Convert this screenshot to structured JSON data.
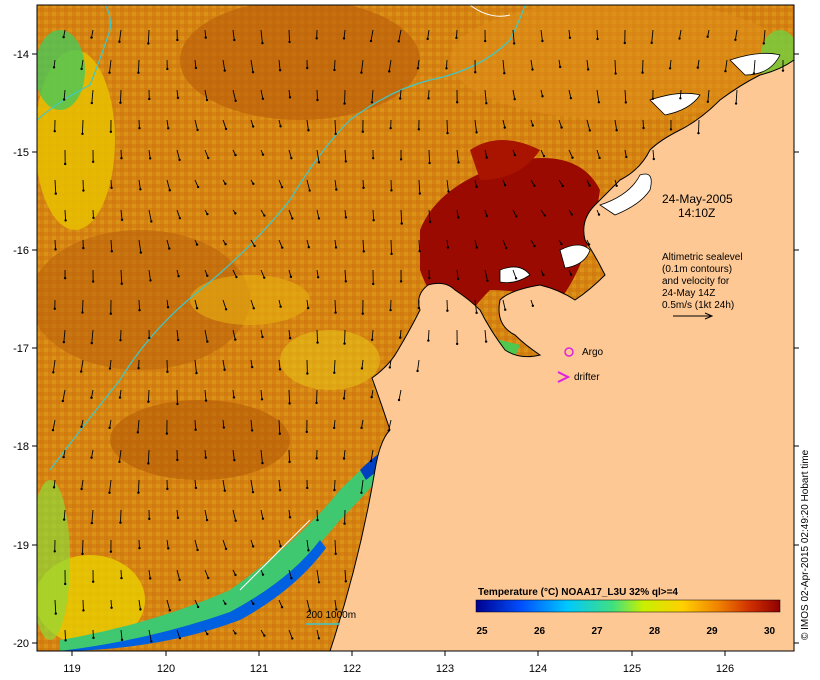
{
  "map": {
    "lon_ticks": [
      "119",
      "120",
      "121",
      "122",
      "123",
      "124",
      "125",
      "126"
    ],
    "lat_ticks": [
      "-14",
      "-15",
      "-16",
      "-17",
      "-18",
      "-19",
      "-20"
    ],
    "date_line1": "24-May-2005",
    "date_line2": "14:10Z",
    "info_lines": [
      "Altimetric sealevel",
      "(0.1m contours)",
      "and velocity for",
      "24-May 14Z",
      "0.5m/s (1kt 24h)"
    ],
    "legend_argo": "Argo",
    "legend_drifter": "drifter",
    "depth_label": "200  1000m",
    "colorbar_title": "Temperature (°C) NOAA17_L3U 32% ql>=4",
    "colorbar_ticks": [
      "25",
      "26",
      "27",
      "28",
      "29",
      "30"
    ],
    "colorbar_range": [
      25,
      30
    ],
    "credit": "© IMOS 02-Apr-2015 02:49:20 Hobart time",
    "colors": {
      "land": "#fdc894",
      "contour": "#40c8c8",
      "argo": "#e020e0",
      "drifter": "#e020e0"
    }
  }
}
